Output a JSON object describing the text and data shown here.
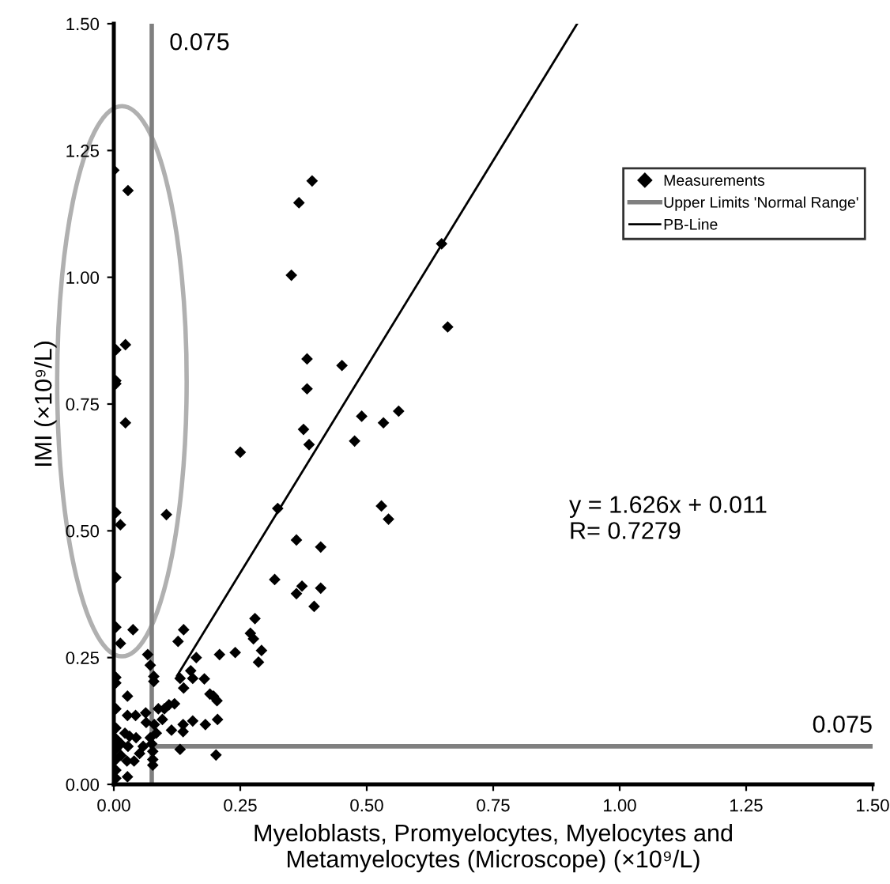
{
  "chart_data": {
    "type": "scatter",
    "xlabel": "Myeloblasts, Promyelocytes, Myelocytes and\nMetamyelocytes (Microscope) (×10⁹/L)",
    "ylabel": "IMI (×10⁹/L)",
    "xlim": [
      0,
      1.5
    ],
    "ylim": [
      0,
      1.5
    ],
    "xticks": [
      {
        "value": 0,
        "label": "0.00"
      },
      {
        "value": 0.25,
        "label": "0.25"
      },
      {
        "value": 0.5,
        "label": "0.50"
      },
      {
        "value": 0.75,
        "label": "0.75"
      },
      {
        "value": 1.0,
        "label": "1.00"
      },
      {
        "value": 1.25,
        "label": "1.25"
      },
      {
        "value": 1.5,
        "label": "1.50"
      }
    ],
    "yticks": [
      {
        "value": 0,
        "label": "0.00"
      },
      {
        "value": 0.25,
        "label": "0.25"
      },
      {
        "value": 0.5,
        "label": "0.50"
      },
      {
        "value": 0.75,
        "label": "0.75"
      },
      {
        "value": 1.0,
        "label": "1.00"
      },
      {
        "value": 1.25,
        "label": "1.25"
      },
      {
        "value": 1.5,
        "label": "1.50"
      }
    ],
    "grid": false,
    "legend": "top right",
    "series": [
      {
        "name": "Measurements",
        "marker": "diamond",
        "color": "#000000",
        "x": [
          0.0,
          0.028,
          0.366,
          0.392,
          0.351,
          0.004,
          0.023,
          0.004,
          0.004,
          0.382,
          0.451,
          0.382,
          0.023,
          0.563,
          0.49,
          0.533,
          0.375,
          0.648,
          0.66,
          0.386,
          0.476,
          0.25,
          0.004,
          0.013,
          0.104,
          0.324,
          0.529,
          0.543,
          0.361,
          0.409,
          0.318,
          0.372,
          0.361,
          0.409,
          0.396,
          0.004,
          0.004,
          0.013,
          0.038,
          0.138,
          0.127,
          0.279,
          0.27,
          0.276,
          0.292,
          0.286,
          0.24,
          0.209,
          0.163,
          0.067,
          0.072,
          0.079,
          0.079,
          0.004,
          0.004,
          0.027,
          0.004,
          0.027,
          0.043,
          0.131,
          0.138,
          0.152,
          0.156,
          0.179,
          0.19,
          0.197,
          0.204,
          0.205,
          0.181,
          0.156,
          0.137,
          0.137,
          0.114,
          0.109,
          0.12,
          0.1,
          0.088,
          0.096,
          0.063,
          0.064,
          0.08,
          0.084,
          0.072,
          0.022,
          0.031,
          0.044,
          0.028,
          0.058,
          0.051,
          0.04,
          0.026,
          0.014,
          0.014,
          0.131,
          0.202,
          0.075,
          0.077,
          0.077,
          0.077,
          0.004,
          0.004,
          0.004,
          0.004,
          0.004,
          0.004,
          0.027
        ],
        "values": [
          1.211,
          1.171,
          1.147,
          1.19,
          1.004,
          0.857,
          0.867,
          0.796,
          0.79,
          0.839,
          0.826,
          0.78,
          0.713,
          0.736,
          0.726,
          0.713,
          0.7,
          1.066,
          0.902,
          0.67,
          0.677,
          0.655,
          0.536,
          0.512,
          0.532,
          0.544,
          0.549,
          0.523,
          0.482,
          0.468,
          0.404,
          0.391,
          0.376,
          0.387,
          0.351,
          0.408,
          0.31,
          0.278,
          0.305,
          0.305,
          0.282,
          0.327,
          0.298,
          0.287,
          0.264,
          0.241,
          0.26,
          0.256,
          0.25,
          0.256,
          0.235,
          0.213,
          0.203,
          0.211,
          0.2,
          0.174,
          0.149,
          0.136,
          0.136,
          0.209,
          0.19,
          0.224,
          0.209,
          0.208,
          0.178,
          0.174,
          0.165,
          0.128,
          0.118,
          0.125,
          0.118,
          0.104,
          0.107,
          0.157,
          0.159,
          0.149,
          0.149,
          0.128,
          0.141,
          0.122,
          0.118,
          0.101,
          0.092,
          0.101,
          0.095,
          0.092,
          0.075,
          0.075,
          0.061,
          0.046,
          0.046,
          0.057,
          0.08,
          0.069,
          0.058,
          0.08,
          0.065,
          0.049,
          0.038,
          0.111,
          0.09,
          0.069,
          0.049,
          0.028,
          0.012,
          0.015
        ]
      },
      {
        "name": "Upper Limits 'Normal Range'",
        "type": "line",
        "color": "#808080",
        "line_style": "solid",
        "x": [
          0.075,
          0.075,
          null,
          0.075,
          1.5
        ],
        "values": [
          0,
          1.5,
          null,
          0.075,
          0.075
        ]
      },
      {
        "name": "PB-Line",
        "type": "line",
        "color": "#000000",
        "line_style": "solid",
        "x": [
          0.125,
          0.916
        ],
        "values": [
          0.214,
          1.5
        ]
      }
    ],
    "annotations": [
      {
        "text": "0.075",
        "x": 0.075,
        "y": 1.5
      },
      {
        "text": "0.075",
        "x": 1.5,
        "y": 0.075
      },
      "y = 1.626x + 0.011\nR= 0.7279"
    ]
  }
}
